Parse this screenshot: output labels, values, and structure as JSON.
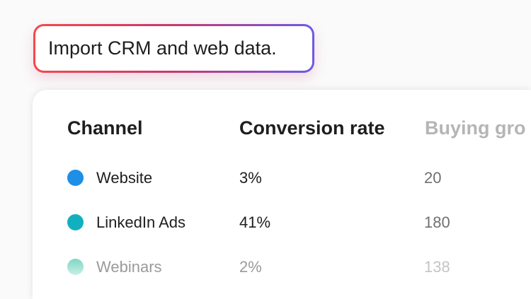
{
  "prompt": {
    "text": "Import CRM and web data.",
    "gradient": [
      "#f5484a",
      "#6a5ae8"
    ]
  },
  "table": {
    "headers": [
      "Channel",
      "Conversion rate",
      "Buying gro"
    ],
    "rows": [
      {
        "channel": "Website",
        "conversion_rate": "3%",
        "buying_groups": "20",
        "color": "#1d8fe6"
      },
      {
        "channel": "LinkedIn Ads",
        "conversion_rate": "41%",
        "buying_groups": "180",
        "color": "#12b0bf"
      },
      {
        "channel": "Webinars",
        "conversion_rate": "2%",
        "buying_groups": "138",
        "color": "#5fd0b8"
      }
    ]
  }
}
